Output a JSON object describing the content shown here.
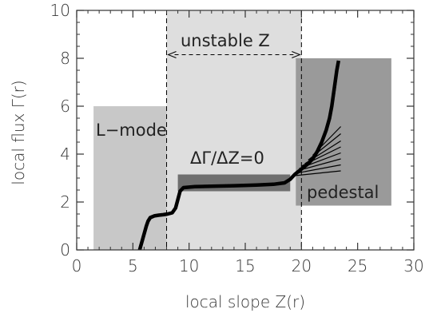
{
  "chart_data": {
    "type": "line",
    "xlabel": "local slope Z(r)",
    "ylabel": "local flux Γ(r)",
    "xlim": [
      0,
      30
    ],
    "ylim": [
      0,
      10
    ],
    "xticks": [
      0,
      5,
      10,
      15,
      20,
      25,
      30
    ],
    "yticks": [
      0,
      2,
      4,
      6,
      8,
      10
    ],
    "xtick_labels": [
      "0",
      "5",
      "10",
      "15",
      "20",
      "25",
      "30"
    ],
    "ytick_labels": [
      "0",
      "2",
      "4",
      "6",
      "8",
      "10"
    ],
    "grid": false,
    "colors": {
      "lmode_region": "#c8c8c8",
      "unstable_region": "#dedede",
      "pedestal_region": "#9a9a9a",
      "plateau_region": "#6f6f6f",
      "curve": "#000000",
      "axis": "#333333"
    },
    "regions": [
      {
        "name": "lmode",
        "label": "L−mode",
        "x": [
          1.5,
          10
        ],
        "y": [
          0,
          6
        ]
      },
      {
        "name": "unstable",
        "label": "unstable Z",
        "x": [
          8,
          20
        ],
        "y": [
          0,
          10
        ]
      },
      {
        "name": "pedestal",
        "label": "pedestal",
        "x": [
          19.5,
          28
        ],
        "y": [
          1.85,
          8
        ]
      },
      {
        "name": "plateau",
        "label": "ΔΓ/ΔZ=0",
        "x": [
          9,
          19
        ],
        "y": [
          2.45,
          3.15
        ]
      }
    ],
    "vlines": [
      8,
      20
    ],
    "main_curve": [
      [
        5.6,
        0
      ],
      [
        5.75,
        0.25
      ],
      [
        5.9,
        0.5
      ],
      [
        6.05,
        0.75
      ],
      [
        6.2,
        1.0
      ],
      [
        6.35,
        1.2
      ],
      [
        6.55,
        1.35
      ],
      [
        6.9,
        1.42
      ],
      [
        7.3,
        1.45
      ],
      [
        7.7,
        1.47
      ],
      [
        8.1,
        1.5
      ],
      [
        8.5,
        1.55
      ],
      [
        8.8,
        1.75
      ],
      [
        9.0,
        2.1
      ],
      [
        9.2,
        2.45
      ],
      [
        9.5,
        2.6
      ],
      [
        10.5,
        2.64
      ],
      [
        12,
        2.66
      ],
      [
        14,
        2.68
      ],
      [
        16,
        2.71
      ],
      [
        17.5,
        2.74
      ],
      [
        18.5,
        2.8
      ],
      [
        19.0,
        2.95
      ],
      [
        19.4,
        3.15
      ],
      [
        19.8,
        3.3
      ],
      [
        20.2,
        3.45
      ],
      [
        20.6,
        3.6
      ],
      [
        21.0,
        3.8
      ],
      [
        21.4,
        4.1
      ],
      [
        21.8,
        4.5
      ],
      [
        22.2,
        5.0
      ],
      [
        22.5,
        5.5
      ],
      [
        22.7,
        6.0
      ],
      [
        22.85,
        6.5
      ],
      [
        23.0,
        7.0
      ],
      [
        23.15,
        7.5
      ],
      [
        23.3,
        7.9
      ]
    ],
    "fan_lines": [
      [
        [
          19.4,
          3.1
        ],
        [
          23.5,
          3.3
        ]
      ],
      [
        [
          19.5,
          3.2
        ],
        [
          23.5,
          3.55
        ]
      ],
      [
        [
          19.6,
          3.3
        ],
        [
          23.5,
          3.8
        ]
      ],
      [
        [
          19.8,
          3.4
        ],
        [
          23.5,
          4.05
        ]
      ],
      [
        [
          20.0,
          3.5
        ],
        [
          23.5,
          4.3
        ]
      ],
      [
        [
          20.3,
          3.6
        ],
        [
          23.5,
          4.55
        ]
      ],
      [
        [
          20.6,
          3.75
        ],
        [
          23.5,
          4.85
        ]
      ],
      [
        [
          21.0,
          3.95
        ],
        [
          23.5,
          5.15
        ]
      ]
    ],
    "annotations": {
      "lmode": "L−mode",
      "unstable": "unstable Z",
      "plateau": "ΔΓ/ΔZ=0",
      "pedestal": "pedestal"
    }
  }
}
